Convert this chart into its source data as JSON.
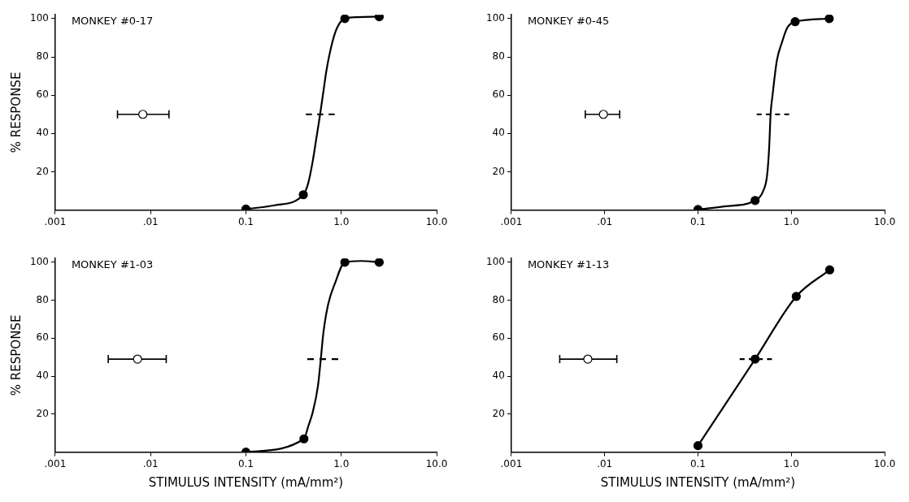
{
  "chart_data": [
    {
      "type": "scatter",
      "title": "MONKEY #0-17",
      "ylabel": "% RESPONSE",
      "log": "x",
      "xlim": [
        0.001,
        10
      ],
      "xticks": [
        {
          "value": 0.001,
          "label": ".001"
        },
        {
          "value": 0.01,
          "label": ".01"
        },
        {
          "value": 0.1,
          "label": "0.1"
        },
        {
          "value": 1,
          "label": "1.0"
        },
        {
          "value": 10,
          "label": "10.0"
        }
      ],
      "ylim": [
        0,
        102
      ],
      "yticks": [
        20,
        40,
        60,
        80,
        100
      ],
      "series": [
        {
          "type": "line",
          "color": "#000000",
          "marker": "none",
          "x": [
            0.1,
            0.2,
            0.4,
            0.45,
            0.5,
            0.55,
            0.6,
            0.65,
            0.7,
            0.8,
            0.9,
            1.09,
            1.5,
            2.5
          ],
          "values": [
            0.5,
            2.5,
            8,
            14,
            25,
            38,
            50,
            62,
            73,
            87,
            95,
            100,
            100.8,
            101
          ]
        },
        {
          "type": "scatter",
          "color": "#000000",
          "marker": "circle",
          "x": [
            0.1,
            0.4,
            1.09,
            2.5
          ],
          "values": [
            0.5,
            8,
            100,
            101
          ]
        },
        {
          "type": "scatter",
          "color": "#ffffff",
          "marker": "circle",
          "x": [
            0.0083
          ],
          "values": [
            50
          ],
          "xerrors": [
            [
              0.0045,
              0.0156
            ]
          ]
        },
        {
          "type": "line",
          "color": "#000000",
          "marker": "none",
          "line_style": "dashed",
          "x": [
            0.425,
            0.853
          ],
          "values": [
            50,
            50
          ]
        }
      ]
    },
    {
      "type": "scatter",
      "title": "MONKEY #0-45",
      "log": "x",
      "xlim": [
        0.001,
        10
      ],
      "xticks": [
        {
          "value": 0.001,
          "label": ".001"
        },
        {
          "value": 0.01,
          "label": ".01"
        },
        {
          "value": 0.1,
          "label": "0.1"
        },
        {
          "value": 1,
          "label": "1.0"
        },
        {
          "value": 10,
          "label": "10.0"
        }
      ],
      "ylim": [
        0,
        102
      ],
      "yticks": [
        20,
        40,
        60,
        80,
        100
      ],
      "series": [
        {
          "type": "line",
          "color": "#000000",
          "marker": "none",
          "x": [
            0.1,
            0.2,
            0.41,
            0.5,
            0.55,
            0.58,
            0.6,
            0.63,
            0.7,
            0.8,
            0.9,
            1.1,
            2.55
          ],
          "values": [
            0.3,
            2,
            5,
            10,
            18,
            33,
            50,
            60,
            78,
            88,
            95,
            98.4,
            100
          ]
        },
        {
          "type": "scatter",
          "color": "#000000",
          "marker": "circle",
          "x": [
            0.1,
            0.41,
            1.1,
            2.55
          ],
          "values": [
            0.3,
            5,
            98.4,
            100
          ]
        },
        {
          "type": "scatter",
          "color": "#ffffff",
          "marker": "circle",
          "x": [
            0.0097
          ],
          "values": [
            50
          ],
          "xerrors": [
            [
              0.0062,
              0.0145
            ]
          ]
        },
        {
          "type": "line",
          "color": "#000000",
          "marker": "none",
          "line_style": "dashed",
          "x": [
            0.426,
            0.95
          ],
          "values": [
            50,
            50
          ]
        }
      ]
    },
    {
      "type": "scatter",
      "title": "MONKEY #1-03",
      "xlabel": "STIMULUS INTENSITY (mA/mm²)",
      "ylabel": "% RESPONSE",
      "log": "x",
      "xlim": [
        0.001,
        10
      ],
      "xticks": [
        {
          "value": 0.001,
          "label": ".001"
        },
        {
          "value": 0.01,
          "label": ".01"
        },
        {
          "value": 0.1,
          "label": "0.1"
        },
        {
          "value": 1,
          "label": "1.0"
        },
        {
          "value": 10,
          "label": "10.0"
        }
      ],
      "ylim": [
        0,
        102
      ],
      "yticks": [
        20,
        40,
        60,
        80,
        100
      ],
      "series": [
        {
          "type": "line",
          "color": "#000000",
          "marker": "none",
          "x": [
            0.1,
            0.406,
            0.45,
            0.5,
            0.57,
            0.61,
            0.65,
            0.73,
            0.86,
            1.09,
            1.6,
            2.5
          ],
          "values": [
            0,
            7,
            13.5,
            20.7,
            35,
            49,
            63,
            78,
            89,
            100,
            100.7,
            100
          ]
        },
        {
          "type": "scatter",
          "color": "#000000",
          "marker": "circle",
          "x": [
            0.1,
            0.406,
            1.09,
            2.5
          ],
          "values": [
            0,
            7,
            100,
            100
          ]
        },
        {
          "type": "scatter",
          "color": "#ffffff",
          "marker": "circle",
          "x": [
            0.0073
          ],
          "values": [
            49
          ],
          "xerrors": [
            [
              0.0036,
              0.0146
            ]
          ]
        },
        {
          "type": "line",
          "color": "#000000",
          "marker": "none",
          "line_style": "dashed",
          "x": [
            0.44,
            0.93
          ],
          "values": [
            49,
            49
          ]
        }
      ]
    },
    {
      "type": "scatter",
      "title": "MONKEY #1-13",
      "xlabel": "STIMULUS INTENSITY (mA/mm²)",
      "log": "x",
      "xlim": [
        0.001,
        10
      ],
      "xticks": [
        {
          "value": 0.001,
          "label": ".001"
        },
        {
          "value": 0.01,
          "label": ".01"
        },
        {
          "value": 0.1,
          "label": "0.1"
        },
        {
          "value": 1,
          "label": "1.0"
        },
        {
          "value": 10,
          "label": "10.0"
        }
      ],
      "ylim": [
        0,
        102
      ],
      "yticks": [
        20,
        40,
        60,
        80,
        100
      ],
      "series": [
        {
          "type": "line",
          "color": "#000000",
          "marker": "circle",
          "x": [
            0.1,
            0.41,
            1.13,
            2.58
          ],
          "values": [
            3.4,
            49,
            82,
            96
          ]
        },
        {
          "type": "scatter",
          "color": "#ffffff",
          "marker": "circle",
          "x": [
            0.0066
          ],
          "values": [
            49
          ],
          "xerrors": [
            [
              0.0033,
              0.0135
            ]
          ]
        },
        {
          "type": "line",
          "color": "#000000",
          "marker": "none",
          "line_style": "dashed",
          "x": [
            0.28,
            0.62
          ],
          "values": [
            49,
            49
          ]
        }
      ]
    }
  ]
}
